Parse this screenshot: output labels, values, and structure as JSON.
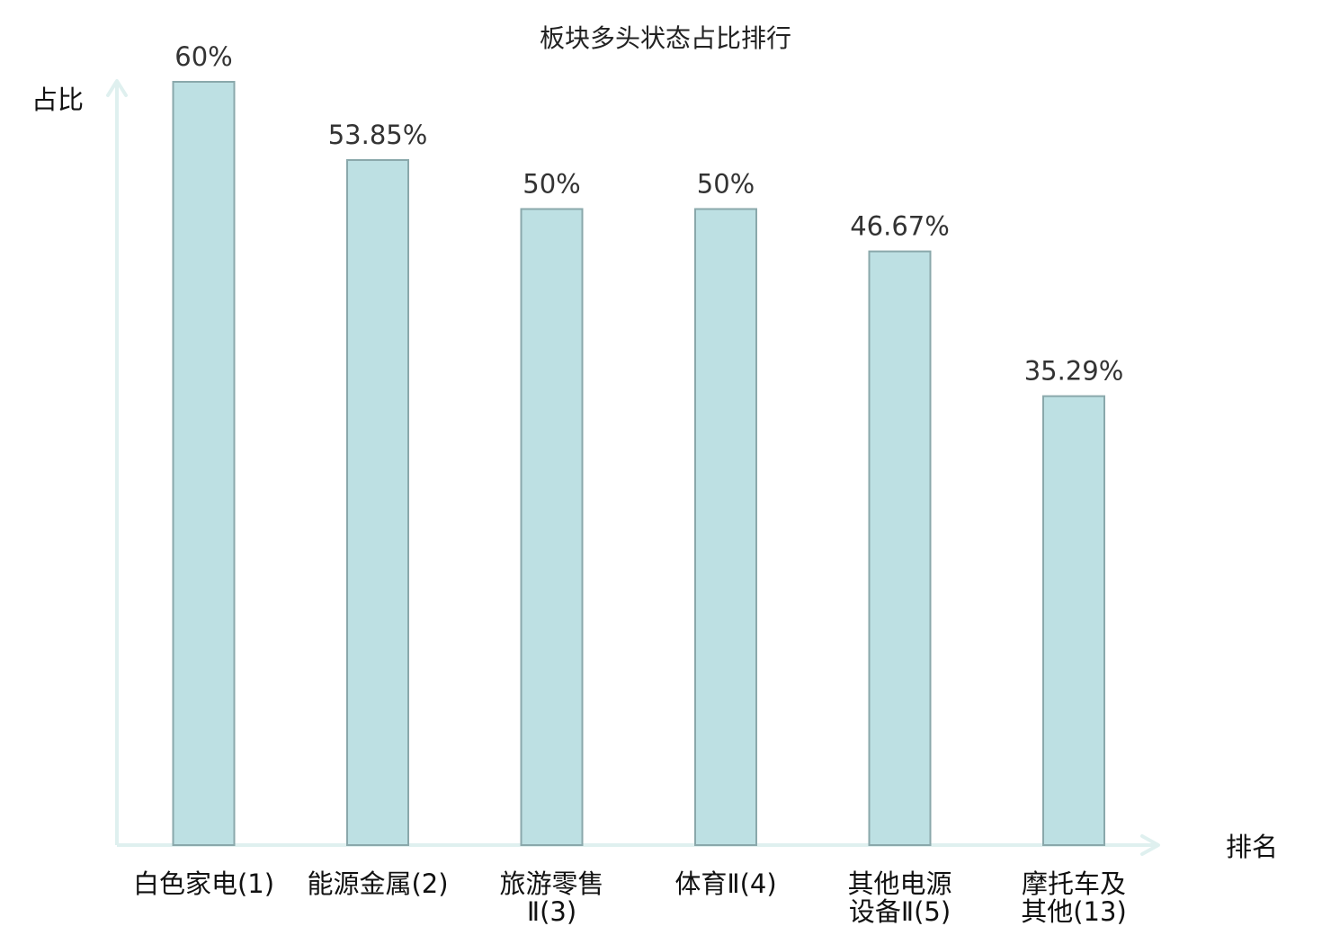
{
  "chart_data": {
    "type": "bar",
    "title": "板块多头状态占比排行",
    "xlabel": "排名",
    "ylabel": "占比",
    "categories": [
      {
        "lines": [
          "白色家电(1)"
        ],
        "highlight": false
      },
      {
        "lines": [
          "能源金属(2)"
        ],
        "highlight": false
      },
      {
        "lines": [
          "旅游零售",
          "Ⅱ(3)"
        ],
        "highlight": false
      },
      {
        "lines": [
          "体育Ⅱ(4)"
        ],
        "highlight": false
      },
      {
        "lines": [
          "其他电源",
          "设备Ⅱ(5)"
        ],
        "highlight": false
      },
      {
        "lines": [
          "摩托车及",
          "其他(13)"
        ],
        "highlight": true
      }
    ],
    "values": [
      60,
      53.85,
      50,
      50,
      46.67,
      35.29
    ],
    "value_labels": [
      "60%",
      "53.85%",
      "50%",
      "50%",
      "46.67%",
      "35.29%"
    ],
    "ylim": [
      0,
      60
    ],
    "grid": false,
    "legend": "none"
  },
  "colors": {
    "bar_fill": "#bde0e3",
    "bar_stroke": "#8aa8ab",
    "axis": "#dff0ef",
    "text": "#111111",
    "highlight_text": "#e02020"
  }
}
